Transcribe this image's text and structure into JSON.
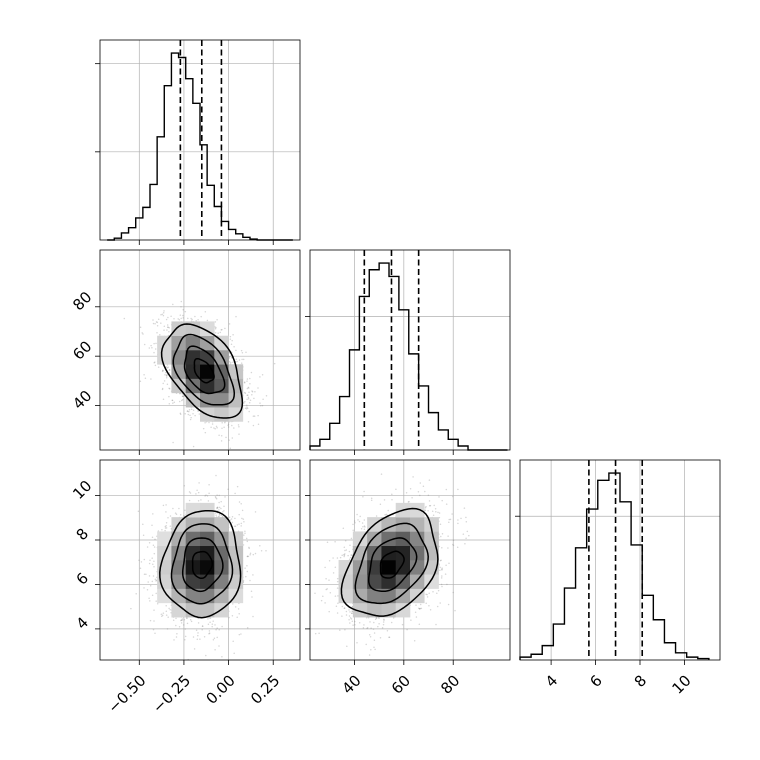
{
  "chart_data": [
    {
      "type": "histogram",
      "panel": "p1-hist",
      "grid": true,
      "x_range": [
        -0.72,
        0.4
      ],
      "bin_centers": [
        -0.66,
        -0.62,
        -0.58,
        -0.54,
        -0.5,
        -0.46,
        -0.42,
        -0.38,
        -0.34,
        -0.3,
        -0.26,
        -0.22,
        -0.18,
        -0.14,
        -0.1,
        -0.06,
        -0.02,
        0.02,
        0.06,
        0.1,
        0.14,
        0.18,
        0.22,
        0.26,
        0.3,
        0.34
      ],
      "counts": [
        0,
        2,
        8,
        14,
        25,
        37,
        63,
        117,
        175,
        212,
        207,
        183,
        155,
        108,
        62,
        38,
        21,
        12,
        7,
        3,
        1,
        0,
        0,
        0,
        0,
        0
      ],
      "quantiles": [
        -0.27,
        -0.15,
        -0.04
      ],
      "x_ticks": [
        -0.5,
        -0.25,
        0.0,
        0.25
      ],
      "x_tick_labels": [
        "−0.50",
        "−0.25",
        "0.00",
        "0.25"
      ]
    },
    {
      "type": "histogram",
      "panel": "p2-hist",
      "grid": true,
      "x_range": [
        22,
        103
      ],
      "bin_centers": [
        24,
        28,
        32,
        36,
        40,
        44,
        48,
        52,
        56,
        60,
        64,
        68,
        72,
        76,
        80,
        84,
        88,
        92,
        96,
        100
      ],
      "counts": [
        3,
        8,
        20,
        40,
        75,
        115,
        135,
        140,
        130,
        105,
        72,
        48,
        28,
        15,
        8,
        3,
        0,
        0,
        0,
        0
      ],
      "quantiles": [
        44,
        55,
        66
      ],
      "x_ticks": [
        40,
        60,
        80
      ],
      "x_tick_labels": [
        "40",
        "60",
        "80"
      ]
    },
    {
      "type": "histogram",
      "panel": "p3-hist",
      "grid": true,
      "x_range": [
        2.6,
        11.6
      ],
      "bin_centers": [
        2.85,
        3.35,
        3.85,
        4.35,
        4.85,
        5.35,
        5.85,
        6.35,
        6.85,
        7.35,
        7.85,
        8.35,
        8.85,
        9.35,
        9.85,
        10.35,
        10.85
      ],
      "counts": [
        2,
        4,
        10,
        25,
        50,
        78,
        105,
        125,
        130,
        110,
        80,
        45,
        28,
        12,
        5,
        2,
        1
      ],
      "quantiles": [
        5.7,
        6.9,
        8.1
      ],
      "x_ticks": [
        4,
        6,
        8,
        10
      ],
      "x_tick_labels": [
        "4",
        "6",
        "8",
        "10"
      ]
    },
    {
      "type": "scatter-contour",
      "panel": "p1-p2",
      "x_range": [
        -0.72,
        0.4
      ],
      "y_range": [
        22,
        103
      ],
      "center": [
        -0.14,
        54
      ],
      "sd": [
        0.11,
        9.5
      ],
      "corr": -0.45,
      "contour_levels_sigma": [
        0.5,
        1.0,
        1.5,
        2.0
      ],
      "grid": true,
      "x_ticks": [
        -0.5,
        -0.25,
        0.0,
        0.25
      ],
      "y_ticks": [
        40,
        60,
        80
      ],
      "y_tick_labels": [
        "40",
        "60",
        "80"
      ]
    },
    {
      "type": "scatter-contour",
      "panel": "p1-p3",
      "x_range": [
        -0.72,
        0.4
      ],
      "y_range": [
        2.6,
        11.6
      ],
      "center": [
        -0.15,
        6.9
      ],
      "sd": [
        0.11,
        1.2
      ],
      "corr": 0.05,
      "contour_levels_sigma": [
        0.5,
        1.0,
        1.5,
        2.0
      ],
      "grid": true,
      "x_ticks": [
        -0.5,
        -0.25,
        0.0,
        0.25
      ],
      "x_tick_labels": [
        "−0.50",
        "−0.25",
        "0.00",
        "0.25"
      ],
      "y_ticks": [
        4,
        6,
        8,
        10
      ],
      "y_tick_labels": [
        "4",
        "6",
        "8",
        "10"
      ]
    },
    {
      "type": "scatter-contour",
      "panel": "p2-p3",
      "x_range": [
        22,
        103
      ],
      "y_range": [
        2.6,
        11.6
      ],
      "center": [
        55,
        6.9
      ],
      "sd": [
        9.5,
        1.2
      ],
      "corr": 0.35,
      "contour_levels_sigma": [
        0.5,
        1.0,
        1.5,
        2.0
      ],
      "grid": true,
      "x_ticks": [
        40,
        60,
        80
      ],
      "x_tick_labels": [
        "40",
        "60",
        "80"
      ],
      "y_ticks": [
        4,
        6,
        8,
        10
      ]
    }
  ]
}
